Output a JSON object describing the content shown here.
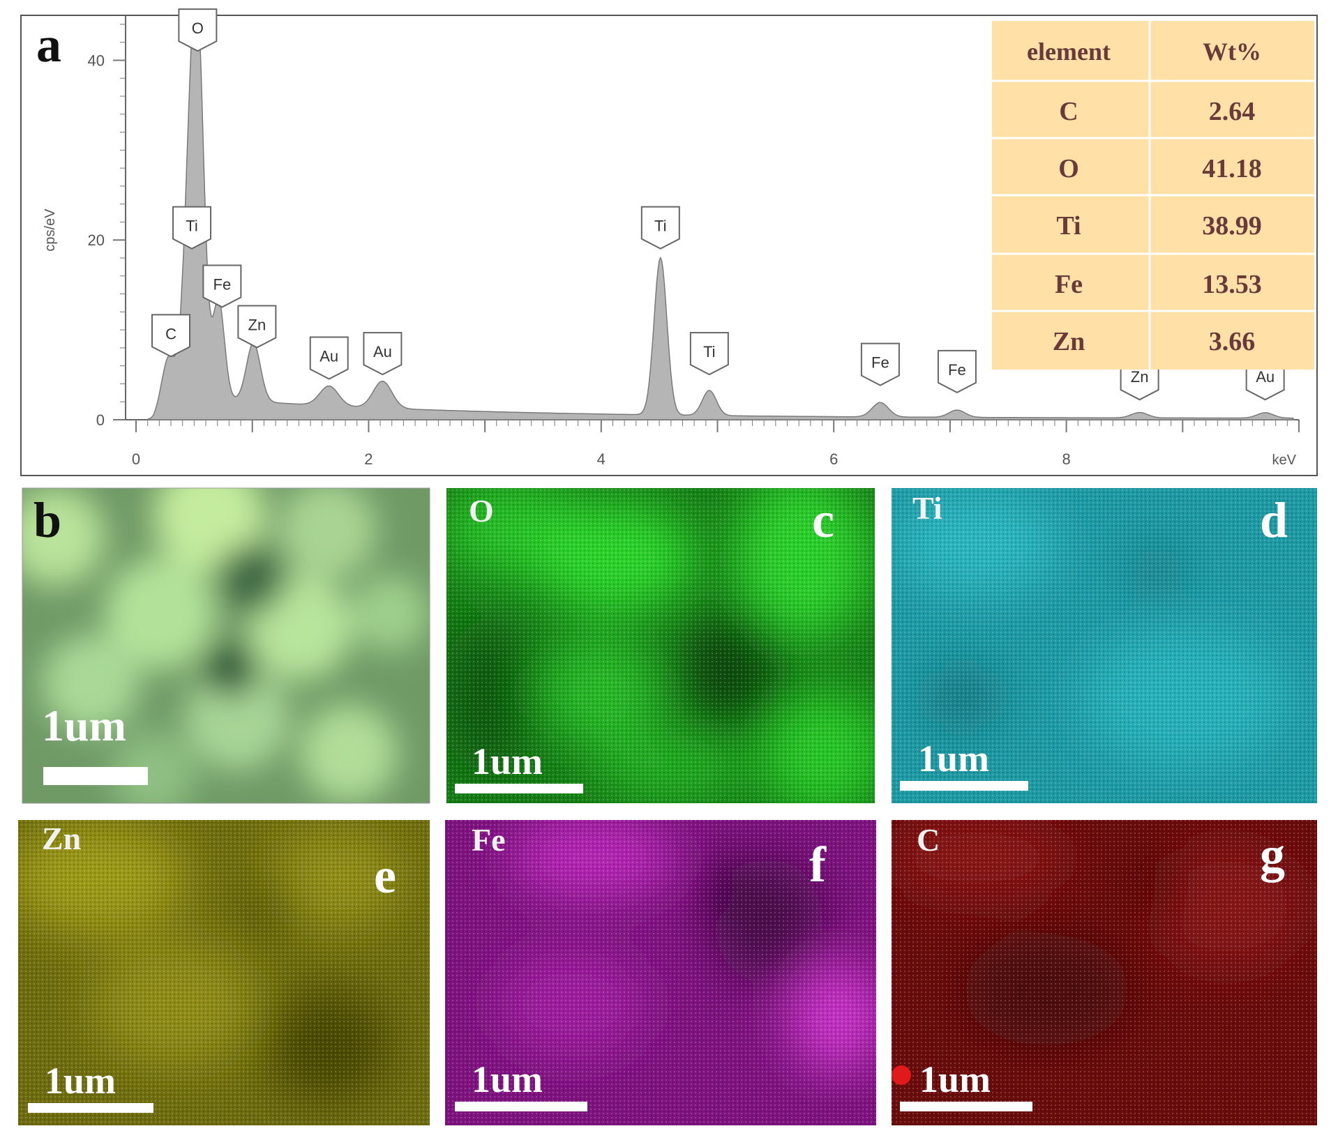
{
  "panels": {
    "a": {
      "letter": "a",
      "ylabel": "cps/eV",
      "xunit": "keV",
      "table": {
        "headers": [
          "element",
          "Wt%"
        ],
        "rows": [
          {
            "element": "C",
            "wt": "2.64"
          },
          {
            "element": "O",
            "wt": "41.18"
          },
          {
            "element": "Ti",
            "wt": "38.99"
          },
          {
            "element": "Fe",
            "wt": "13.53"
          },
          {
            "element": "Zn",
            "wt": "3.66"
          }
        ]
      }
    },
    "b": {
      "letter": "b",
      "scale": "1um"
    },
    "c": {
      "letter": "c",
      "element": "O",
      "scale": "1um",
      "color": "#22b622"
    },
    "d": {
      "letter": "d",
      "element": "Ti",
      "scale": "1um",
      "color": "#22a8b4"
    },
    "e": {
      "letter": "e",
      "element": "Zn",
      "scale": "1um",
      "color": "#8c8a10"
    },
    "f": {
      "letter": "f",
      "element": "Fe",
      "scale": "1um",
      "color": "#a51ea8"
    },
    "g": {
      "letter": "g",
      "element": "C",
      "scale": "1um",
      "color": "#7d1010"
    }
  },
  "chart_data": {
    "type": "line",
    "xlabel": "keV",
    "ylabel": "cps/eV",
    "xlim": [
      0,
      10
    ],
    "ylim": [
      0,
      45
    ],
    "xticks": [
      "0",
      "2",
      "4",
      "6",
      "8"
    ],
    "yticks": [
      "0",
      "20",
      "40"
    ],
    "spectrum_peaks": [
      {
        "label": "C",
        "x": 0.28,
        "y": 5.5,
        "width": 0.06
      },
      {
        "label": "O",
        "x": 0.53,
        "y": 40.0,
        "width": 0.055
      },
      {
        "label": "Ti",
        "x": 0.45,
        "y": 17.0,
        "width": 0.05
      },
      {
        "label": "Fe",
        "x": 0.71,
        "y": 11.0,
        "width": 0.05
      },
      {
        "label": "Zn",
        "x": 1.01,
        "y": 6.5,
        "width": 0.06
      },
      {
        "label": "Au",
        "x": 1.66,
        "y": 2.2,
        "width": 0.08
      },
      {
        "label": "Au",
        "x": 2.12,
        "y": 3.0,
        "width": 0.08
      },
      {
        "label": "Ti",
        "x": 4.51,
        "y": 17.5,
        "width": 0.055
      },
      {
        "label": "Ti",
        "x": 4.93,
        "y": 2.8,
        "width": 0.06
      },
      {
        "label": "Fe",
        "x": 6.4,
        "y": 1.6,
        "width": 0.07
      },
      {
        "label": "Fe",
        "x": 7.06,
        "y": 0.8,
        "width": 0.07
      },
      {
        "label": "Zn",
        "x": 8.63,
        "y": 0.6,
        "width": 0.07
      },
      {
        "label": "Au",
        "x": 9.71,
        "y": 0.6,
        "width": 0.07
      }
    ],
    "peak_labels": [
      {
        "label": "O",
        "x": 0.53,
        "y": 41.5
      },
      {
        "label": "Ti",
        "x": 0.48,
        "y": 19.5
      },
      {
        "label": "Fe",
        "x": 0.74,
        "y": 13.0
      },
      {
        "label": "C",
        "x": 0.3,
        "y": 7.5
      },
      {
        "label": "Zn",
        "x": 1.04,
        "y": 8.5
      },
      {
        "label": "Au",
        "x": 1.66,
        "y": 5.0
      },
      {
        "label": "Au",
        "x": 2.12,
        "y": 5.5
      },
      {
        "label": "Ti",
        "x": 4.51,
        "y": 19.5
      },
      {
        "label": "Ti",
        "x": 4.93,
        "y": 5.5
      },
      {
        "label": "Fe",
        "x": 6.4,
        "y": 4.3
      },
      {
        "label": "Fe",
        "x": 7.06,
        "y": 3.5
      },
      {
        "label": "Zn",
        "x": 8.63,
        "y": 2.7
      },
      {
        "label": "Au",
        "x": 9.71,
        "y": 2.7
      }
    ]
  }
}
